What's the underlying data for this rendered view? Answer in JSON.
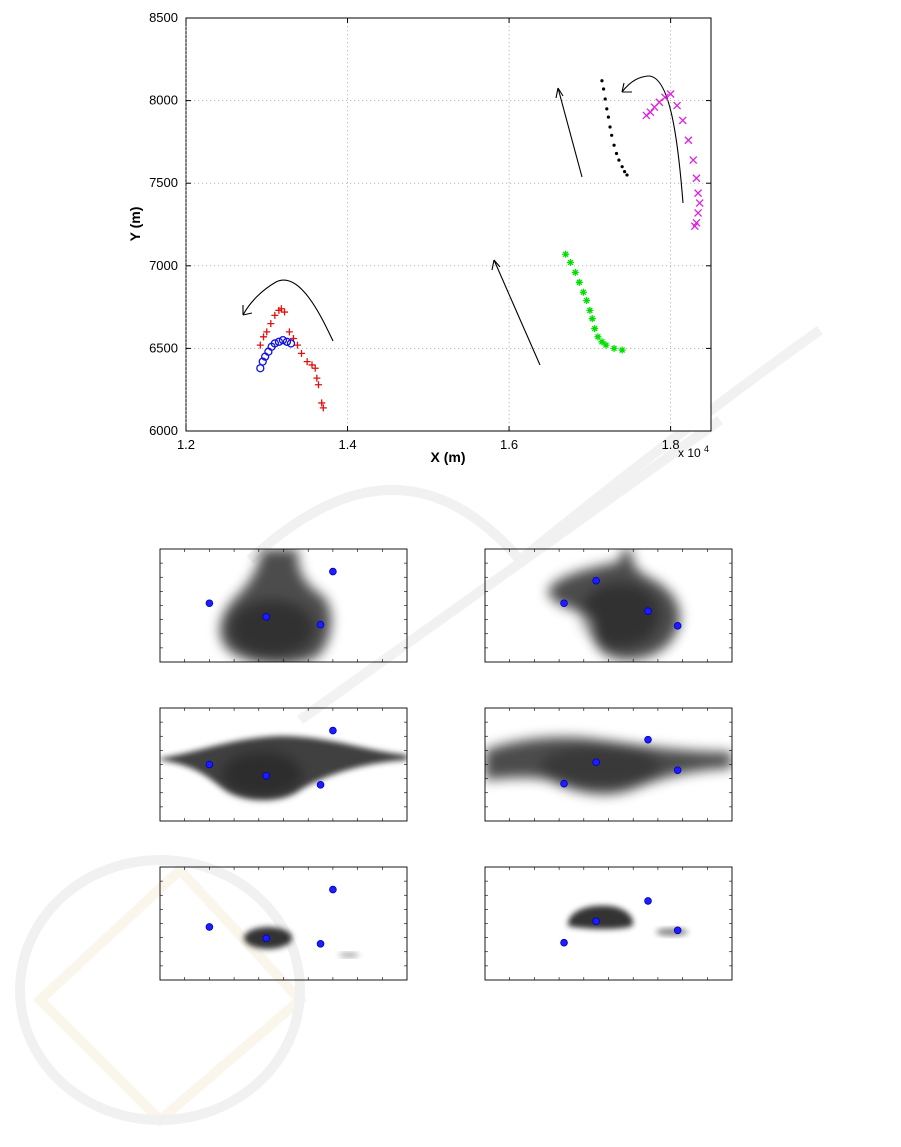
{
  "chart_data": [
    {
      "type": "scatter",
      "xlabel": "X (m)",
      "ylabel": "Y (m)",
      "x_exponent_label": "x 10",
      "x_exponent_power": "4",
      "xlim": [
        12000,
        18500
      ],
      "ylim": [
        6000,
        8500
      ],
      "x_ticks": [
        12000,
        14000,
        16000,
        18000
      ],
      "x_tick_labels": [
        "1.2",
        "1.4",
        "1.6",
        "1.8"
      ],
      "y_ticks": [
        6000,
        6500,
        7000,
        7500,
        8000,
        8500
      ],
      "y_tick_labels": [
        "6000",
        "6500",
        "7000",
        "7500",
        "8000",
        "8500"
      ],
      "grid": true,
      "series": [
        {
          "marker": "+",
          "color": "#e01010",
          "x": [
            12920,
            12960,
            13000,
            13050,
            13100,
            13150,
            13180,
            13220,
            13280,
            13330,
            13380,
            13430,
            13500,
            13560,
            13600,
            13620,
            13640,
            13680,
            13700
          ],
          "y": [
            6520,
            6570,
            6600,
            6650,
            6700,
            6730,
            6740,
            6720,
            6600,
            6560,
            6520,
            6470,
            6420,
            6400,
            6380,
            6320,
            6280,
            6170,
            6140
          ]
        },
        {
          "marker": "o",
          "color": "#1010e0",
          "x": [
            12920,
            12950,
            12980,
            13020,
            13060,
            13100,
            13150,
            13200,
            13250,
            13300
          ],
          "y": [
            6380,
            6420,
            6450,
            6480,
            6510,
            6530,
            6540,
            6550,
            6540,
            6530
          ]
        },
        {
          "marker": "*",
          "color": "#00e000",
          "x": [
            16700,
            16760,
            16820,
            16870,
            16920,
            16960,
            17000,
            17030,
            17060,
            17100,
            17150,
            17200,
            17300,
            17400
          ],
          "y": [
            7070,
            7020,
            6960,
            6900,
            6840,
            6790,
            6730,
            6680,
            6620,
            6570,
            6540,
            6520,
            6500,
            6490
          ]
        },
        {
          "marker": ".",
          "color": "#000000",
          "x": [
            17150,
            17170,
            17190,
            17210,
            17230,
            17250,
            17270,
            17300,
            17330,
            17360,
            17400,
            17430,
            17460
          ],
          "y": [
            8120,
            8070,
            8010,
            7950,
            7900,
            7840,
            7790,
            7730,
            7680,
            7640,
            7600,
            7570,
            7550
          ]
        },
        {
          "marker": "x",
          "color": "#e020e0",
          "x": [
            17700,
            17750,
            17800,
            17860,
            17930,
            18000,
            18080,
            18150,
            18220,
            18280,
            18320,
            18340,
            18360,
            18340,
            18320,
            18300
          ],
          "y": [
            7910,
            7930,
            7960,
            7990,
            8020,
            8040,
            7970,
            7880,
            7760,
            7640,
            7530,
            7440,
            7380,
            7320,
            7260,
            7240
          ]
        }
      ]
    },
    {
      "type": "heatmap",
      "panels": [
        {
          "points": [
            [
              0.2,
              0.48
            ],
            [
              0.43,
              0.6
            ],
            [
              0.7,
              0.2
            ],
            [
              0.65,
              0.67
            ]
          ]
        },
        {
          "points": [
            [
              0.32,
              0.48
            ],
            [
              0.45,
              0.28
            ],
            [
              0.66,
              0.55
            ],
            [
              0.78,
              0.68
            ]
          ]
        },
        {
          "points": [
            [
              0.2,
              0.5
            ],
            [
              0.43,
              0.6
            ],
            [
              0.7,
              0.2
            ],
            [
              0.65,
              0.68
            ]
          ]
        },
        {
          "points": [
            [
              0.32,
              0.67
            ],
            [
              0.45,
              0.48
            ],
            [
              0.66,
              0.28
            ],
            [
              0.78,
              0.55
            ]
          ]
        },
        {
          "points": [
            [
              0.2,
              0.53
            ],
            [
              0.43,
              0.63
            ],
            [
              0.7,
              0.2
            ],
            [
              0.65,
              0.68
            ]
          ]
        },
        {
          "points": [
            [
              0.32,
              0.67
            ],
            [
              0.45,
              0.48
            ],
            [
              0.66,
              0.3
            ],
            [
              0.78,
              0.56
            ]
          ]
        }
      ]
    }
  ]
}
